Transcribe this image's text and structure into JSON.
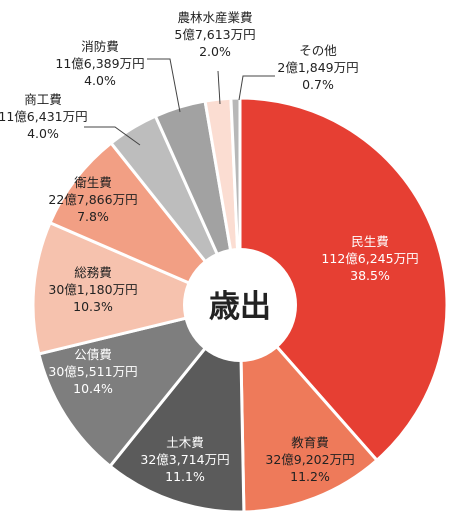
{
  "chart_data": {
    "type": "pie",
    "center_label": "歳出",
    "slices": [
      {
        "name": "民生費",
        "amount": "112億6,245万円",
        "percent": 38.5,
        "percent_label": "38.5%",
        "color": "#e63f33"
      },
      {
        "name": "教育費",
        "amount": "32億9,202万円",
        "percent": 11.2,
        "percent_label": "11.2%",
        "color": "#ee7a5a"
      },
      {
        "name": "土木費",
        "amount": "32億3,714万円",
        "percent": 11.1,
        "percent_label": "11.1%",
        "color": "#5b5b5b"
      },
      {
        "name": "公債費",
        "amount": "30億5,511万円",
        "percent": 10.4,
        "percent_label": "10.4%",
        "color": "#7e7e7e"
      },
      {
        "name": "総務費",
        "amount": "30億1,180万円",
        "percent": 10.3,
        "percent_label": "10.3%",
        "color": "#f6c2ae"
      },
      {
        "name": "衛生費",
        "amount": "22億7,866万円",
        "percent": 7.8,
        "percent_label": "7.8%",
        "color": "#f29f84"
      },
      {
        "name": "商工費",
        "amount": "11億6,431万円",
        "percent": 4.0,
        "percent_label": "4.0%",
        "color": "#bdbdbd"
      },
      {
        "name": "消防費",
        "amount": "11億6,389万円",
        "percent": 4.0,
        "percent_label": "4.0%",
        "color": "#a2a2a2"
      },
      {
        "name": "農林水産業費",
        "amount": "5億7,613万円",
        "percent": 2.0,
        "percent_label": "2.0%",
        "color": "#fbddd2"
      },
      {
        "name": "その他",
        "amount": "2億1,849万円",
        "percent": 0.7,
        "percent_label": "0.7%",
        "color": "#b8b8b8"
      }
    ]
  }
}
